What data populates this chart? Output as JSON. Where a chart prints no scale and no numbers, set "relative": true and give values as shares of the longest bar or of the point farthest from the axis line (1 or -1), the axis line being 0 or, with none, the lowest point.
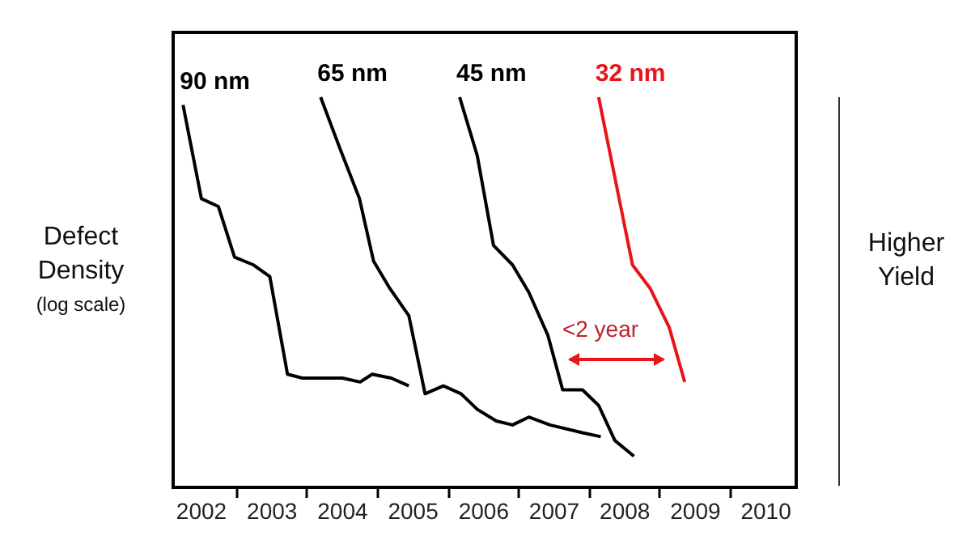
{
  "chart_data": {
    "type": "line",
    "relative": true,
    "ylabel": "Defect\nDensity\n(log scale)",
    "y2label": "Higher\nYield",
    "xlim": [
      2001.61,
      2010.44
    ],
    "xticks": [
      2002,
      {
        "value": 2002.5,
        "label": null
      },
      2003,
      {
        "value": 2003.5,
        "label": null
      },
      2004,
      {
        "value": 2004.5,
        "label": null
      },
      2005,
      {
        "value": 2005.5,
        "label": null
      },
      2006,
      {
        "value": 2006.5,
        "label": null
      },
      2007,
      {
        "value": 2007.5,
        "label": null
      },
      2008,
      {
        "value": 2008.5,
        "label": null
      },
      2009,
      {
        "value": 2009.5,
        "label": null
      },
      2010
    ],
    "grid": false,
    "marker": "none",
    "line_style": "solid",
    "series": [
      {
        "name": "90 nm",
        "color": "#000000",
        "x": [
          2001.75,
          2002.01,
          2002.25,
          2002.48,
          2002.75,
          2002.98,
          2003.23,
          2003.44,
          2004.01,
          2004.26,
          2004.43,
          2004.7,
          2004.95
        ],
        "values": [
          0.98,
          0.74,
          0.72,
          0.59,
          0.57,
          0.54,
          0.29,
          0.28,
          0.28,
          0.27,
          0.29,
          0.28,
          0.26
        ]
      },
      {
        "name": "65 nm",
        "color": "#000000",
        "x": [
          2003.7,
          2003.97,
          2004.25,
          2004.45,
          2004.68,
          2004.95,
          2005.18,
          2005.44,
          2005.69,
          2005.92,
          2006.19,
          2006.42,
          2006.65,
          2006.95,
          2007.41,
          2007.67
        ],
        "values": [
          1.0,
          0.87,
          0.74,
          0.58,
          0.51,
          0.44,
          0.24,
          0.26,
          0.24,
          0.2,
          0.17,
          0.16,
          0.18,
          0.16,
          0.14,
          0.13
        ]
      },
      {
        "name": "45 nm",
        "color": "#000000",
        "x": [
          2005.67,
          2005.92,
          2006.15,
          2006.42,
          2006.65,
          2006.92,
          2007.13,
          2007.41,
          2007.64,
          2007.87,
          2008.14
        ],
        "values": [
          1.0,
          0.85,
          0.62,
          0.57,
          0.5,
          0.39,
          0.25,
          0.25,
          0.21,
          0.12,
          0.08
        ]
      },
      {
        "name": "32 nm",
        "color": "#e8141c",
        "x": [
          2007.64,
          2008.12,
          2008.37,
          2008.64,
          2008.86
        ],
        "values": [
          1.0,
          0.57,
          0.51,
          0.41,
          0.27
        ]
      }
    ],
    "annotations": [
      "<2 year"
    ]
  }
}
